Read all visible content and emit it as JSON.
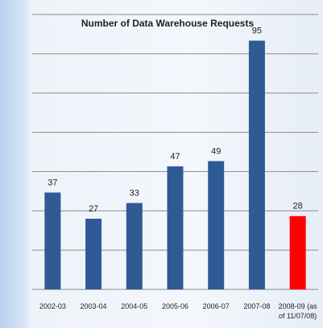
{
  "chart_data": {
    "type": "bar",
    "title": "Number of Data Warehouse Requests",
    "categories": [
      "2002-03",
      "2003-04",
      "2004-05",
      "2005-06",
      "2006-07",
      "2007-08",
      "2008-09 (as of 11/07/08)"
    ],
    "values": [
      37,
      27,
      33,
      47,
      49,
      95,
      28
    ],
    "colors": [
      "#2f5b94",
      "#2f5b94",
      "#2f5b94",
      "#2f5b94",
      "#2f5b94",
      "#2f5b94",
      "#ff0000"
    ],
    "ylim": [
      0,
      105
    ],
    "yticks": [
      0,
      15,
      30,
      45,
      60,
      75,
      90,
      105
    ],
    "grid": true
  }
}
